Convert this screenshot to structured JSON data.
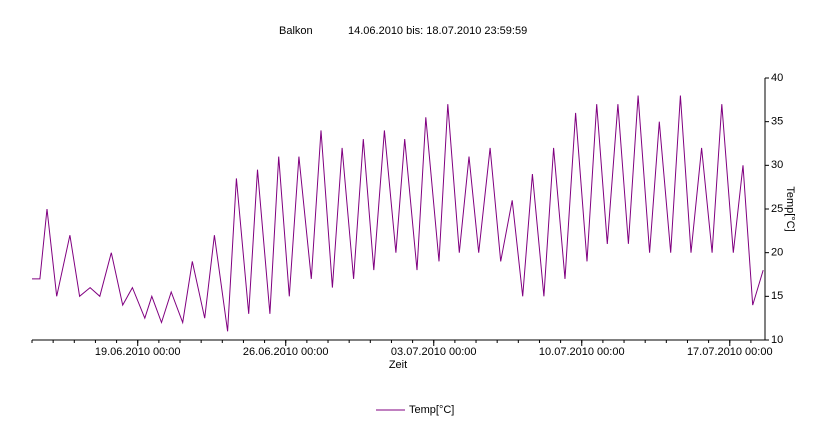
{
  "chart_data": {
    "type": "line",
    "title": "Balkon",
    "subtitle": "14.06.2010 bis: 18.07.2010 23:59:59",
    "xlabel": "Zeit",
    "ylabel": "Temp[°C]",
    "xlim": [
      "2010-06-14T00:00",
      "2010-07-18T16:00"
    ],
    "xticks": [
      {
        "value": "2010-06-19T00:00",
        "label": "19.06.2010 00:00"
      },
      {
        "value": "2010-06-26T00:00",
        "label": "26.06.2010 00:00"
      },
      {
        "value": "2010-07-03T00:00",
        "label": "03.07.2010 00:00"
      },
      {
        "value": "2010-07-10T00:00",
        "label": "10.07.2010 00:00"
      },
      {
        "value": "2010-07-17T00:00",
        "label": "17.07.2010 00:00"
      }
    ],
    "ylim": [
      10,
      40
    ],
    "yticks": [
      10,
      15,
      20,
      25,
      30,
      35,
      40
    ],
    "legend": "bottom",
    "x": [
      "2010-06-14T00:00",
      "2010-06-14T09:00",
      "2010-06-14T17:00",
      "2010-06-15T04:00",
      "2010-06-15T19:00",
      "2010-06-16T06:00",
      "2010-06-16T18:00",
      "2010-06-17T05:00",
      "2010-06-17T18:00",
      "2010-06-18T07:00",
      "2010-06-18T18:00",
      "2010-06-19T08:00",
      "2010-06-19T16:00",
      "2010-06-20T03:00",
      "2010-06-20T14:00",
      "2010-06-21T03:00",
      "2010-06-21T14:00",
      "2010-06-22T04:00",
      "2010-06-22T15:00",
      "2010-06-23T06:00",
      "2010-06-23T16:00",
      "2010-06-24T06:00",
      "2010-06-24T16:00",
      "2010-06-25T06:00",
      "2010-06-25T16:00",
      "2010-06-26T04:00",
      "2010-06-26T15:00",
      "2010-06-27T05:00",
      "2010-06-27T16:00",
      "2010-06-28T05:00",
      "2010-06-28T16:00",
      "2010-06-29T05:00",
      "2010-06-29T16:00",
      "2010-06-30T04:00",
      "2010-06-30T16:00",
      "2010-07-01T05:00",
      "2010-07-01T15:00",
      "2010-07-02T05:00",
      "2010-07-02T15:00",
      "2010-07-03T06:00",
      "2010-07-03T16:00",
      "2010-07-04T05:00",
      "2010-07-04T16:00",
      "2010-07-05T03:00",
      "2010-07-05T16:00",
      "2010-07-06T04:00",
      "2010-07-06T17:00",
      "2010-07-07T05:00",
      "2010-07-07T16:00",
      "2010-07-08T05:00",
      "2010-07-08T16:00",
      "2010-07-09T05:00",
      "2010-07-09T17:00",
      "2010-07-10T06:00",
      "2010-07-10T17:00",
      "2010-07-11T05:00",
      "2010-07-11T17:00",
      "2010-07-12T05:00",
      "2010-07-12T16:00",
      "2010-07-13T05:00",
      "2010-07-13T16:00",
      "2010-07-14T05:00",
      "2010-07-14T16:00",
      "2010-07-15T04:00",
      "2010-07-15T16:00",
      "2010-07-16T04:00",
      "2010-07-16T15:00",
      "2010-07-17T04:00",
      "2010-07-17T15:00",
      "2010-07-18T02:00",
      "2010-07-18T14:00"
    ],
    "series": [
      {
        "name": "Temp[°C]",
        "color": "#800080",
        "values": [
          17,
          17,
          25,
          15,
          22,
          15,
          16,
          15,
          20,
          14,
          16,
          12.5,
          15,
          12,
          15.5,
          12,
          19,
          12.5,
          22,
          11,
          28.5,
          13,
          29.5,
          13,
          31,
          15,
          31,
          17,
          34,
          16,
          32,
          17,
          33,
          18,
          34,
          20,
          33,
          18,
          35.5,
          19,
          37,
          20,
          31,
          20,
          32,
          19,
          26,
          15,
          29,
          15,
          32,
          17,
          36,
          19,
          37,
          21,
          37,
          21,
          38,
          20,
          35,
          20,
          38,
          20,
          32,
          20,
          37,
          20,
          30,
          14,
          18
        ]
      }
    ]
  }
}
